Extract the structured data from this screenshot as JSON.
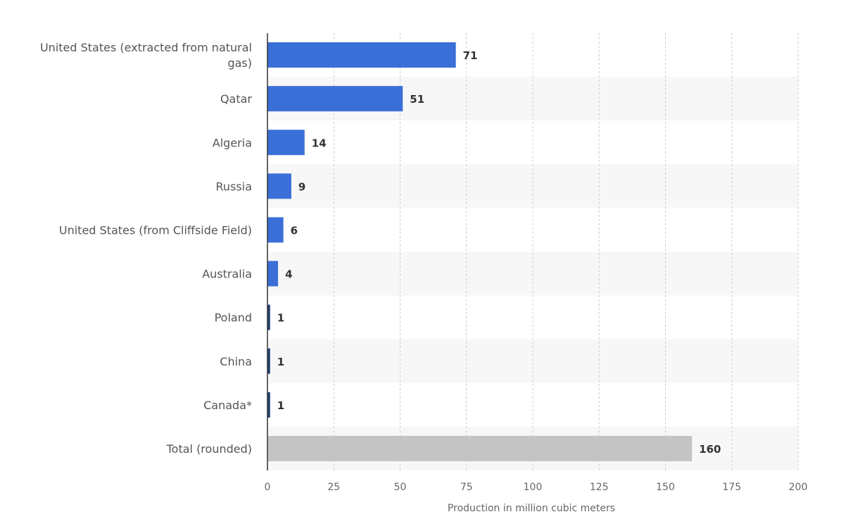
{
  "chart_data": {
    "type": "bar",
    "orientation": "horizontal",
    "title": "",
    "xlabel": "Production in million cubic meters",
    "ylabel": "",
    "xlim": [
      0,
      200
    ],
    "xticks": [
      0,
      25,
      50,
      75,
      100,
      125,
      150,
      175,
      200
    ],
    "grid": true,
    "categories": [
      "United States (extracted from natural gas)",
      "Qatar",
      "Algeria",
      "Russia",
      "United States (from Cliffside Field)",
      "Australia",
      "Poland",
      "China",
      "Canada*",
      "Total (rounded)"
    ],
    "values": [
      71,
      51,
      14,
      9,
      6,
      4,
      1,
      1,
      1,
      160
    ],
    "value_labels": [
      "71",
      "51",
      "14",
      "9",
      "6",
      "4",
      "1",
      "1",
      "1",
      "160"
    ],
    "bar_colors": [
      "#3a6fd8",
      "#3a6fd8",
      "#3a6fd8",
      "#3a6fd8",
      "#3a6fd8",
      "#3a6fd8",
      "#1f3f6e",
      "#1f3f6e",
      "#1f3f6e",
      "#c4c4c4"
    ]
  },
  "colors": {
    "bar": "#3a6fd8",
    "total_bar": "#c4c4c4",
    "band": "#f7f7f7",
    "grid": "#cccccc",
    "axis": "#333333"
  }
}
